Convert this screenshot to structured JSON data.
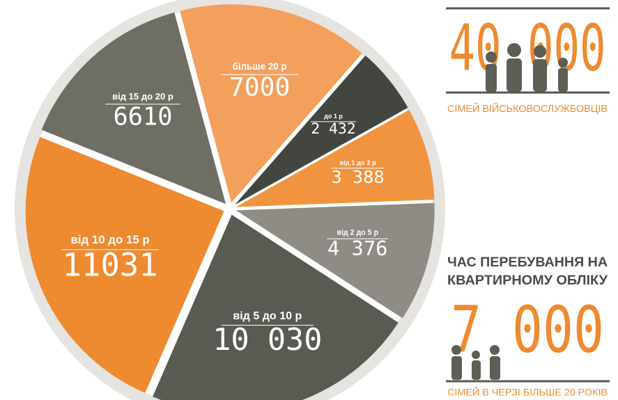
{
  "chart_data": {
    "type": "pie",
    "categories": [
      "більше 20 р",
      "до 1 р",
      "від 1 до 2 р",
      "від 2 до 5 р",
      "від 5 до 10 р",
      "від 10 до 15 р",
      "від 15 до 20 р"
    ],
    "values": [
      7000,
      2432,
      3388,
      4376,
      10030,
      11031,
      6610
    ],
    "value_labels": [
      "7000",
      "2 432",
      "3 388",
      "4 376",
      "10 030",
      "11031",
      "6610"
    ],
    "colors": [
      "#f2a05c",
      "#43463f",
      "#f0943f",
      "#8f8c85",
      "#585b52",
      "#ee8a30",
      "#6f6e65"
    ],
    "annotations": [
      "40 000",
      "СІМЕЙ ВІЙСЬКОВОСЛУЖБОВЦІВ",
      "ЧАС ПЕРЕБУВАННЯ НА",
      "КВАРТИРНОМУ ОБЛІКУ",
      "7 000",
      "СІМЕЙ В ЧЕРЗІ БІЛЬШЕ 20 РОКІВ"
    ]
  }
}
